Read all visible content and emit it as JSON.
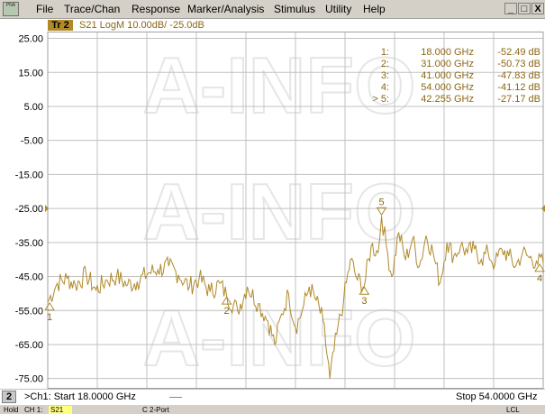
{
  "app": {
    "icon_text": "PNA"
  },
  "menu": [
    {
      "label": "File"
    },
    {
      "label": "Trace/Chan"
    },
    {
      "label": "Response"
    },
    {
      "label": "Marker/Analysis"
    },
    {
      "label": "Stimulus"
    },
    {
      "label": "Utility"
    },
    {
      "label": "Help"
    }
  ],
  "window_buttons": {
    "minimize": "_",
    "restore": "□",
    "close": "X"
  },
  "trace": {
    "badge": "Tr 2",
    "info": "S21 LogM 10.00dB/  -25.0dB"
  },
  "y_axis": {
    "labels": [
      "25.00",
      "15.00",
      "5.00",
      "-5.00",
      "-15.00",
      "-25.00",
      "-35.00",
      "-45.00",
      "-55.00",
      "-65.00",
      "-75.00"
    ]
  },
  "marker_table": [
    {
      "id": "1:",
      "freq": "18.000 GHz",
      "value": "-52.49 dB"
    },
    {
      "id": "2:",
      "freq": "31.000 GHz",
      "value": "-50.73 dB"
    },
    {
      "id": "3:",
      "freq": "41.000 GHz",
      "value": "-47.83 dB"
    },
    {
      "id": "4:",
      "freq": "54.000 GHz",
      "value": "-41.12 dB"
    },
    {
      "id": "> 5:",
      "freq": "42.255 GHz",
      "value": "-27.17 dB"
    }
  ],
  "markers_on_plot": [
    {
      "label": "1",
      "freq": 18.0,
      "db": -52.49
    },
    {
      "label": "2",
      "freq": 31.0,
      "db": -50.73
    },
    {
      "label": "3",
      "freq": 41.0,
      "db": -47.83
    },
    {
      "label": "4",
      "freq": 54.0,
      "db": -41.12
    },
    {
      "label": "5",
      "freq": 42.255,
      "db": -27.17
    }
  ],
  "watermark": {
    "text": "A-INFO"
  },
  "colors": {
    "trace": "#b08a2a",
    "marker_text": "#8b6914",
    "grid": "#c0c0c0"
  },
  "channel_bar": {
    "number": "2",
    "start": ">Ch1: Start  18.0000 GHz",
    "stop": "Stop  54.0000 GHz"
  },
  "status_bar": {
    "hold": "Hold",
    "ch": "CH 1:",
    "param": "S21",
    "port": "C  2-Port",
    "lcl": "LCL"
  },
  "chart_data": {
    "type": "line",
    "xlabel": "",
    "ylabel": "",
    "xlim": [
      18.0,
      54.0
    ],
    "ylim": [
      -78.0,
      27.0
    ],
    "reference_level": -25.0,
    "series": [
      {
        "x": [
          18.0,
          18.7,
          19.4,
          20.0,
          20.8,
          21.5,
          22.3,
          23.0,
          23.8,
          24.5,
          25.3,
          26.0,
          26.8,
          27.5,
          28.3,
          29.0,
          29.8,
          30.5,
          31.0,
          31.8,
          32.5,
          33.3,
          34.0,
          34.5,
          35.0,
          35.5,
          36.0,
          36.5,
          37.0,
          37.5,
          38.0,
          38.5,
          39.0,
          39.5,
          40.0,
          40.5,
          41.0,
          41.5,
          42.0,
          42.255,
          42.6,
          43.0,
          43.5,
          44.0,
          44.5,
          45.0,
          45.5,
          46.0,
          46.5,
          47.0,
          47.5,
          48.0,
          48.5,
          49.0,
          49.5,
          50.0,
          50.5,
          51.0,
          51.5,
          52.0,
          52.5,
          53.0,
          53.5,
          54.0
        ],
        "values": [
          -52.5,
          -47.0,
          -45.5,
          -47.5,
          -44.5,
          -49.0,
          -46.0,
          -45.0,
          -47.5,
          -46.5,
          -44.0,
          -43.0,
          -42.0,
          -44.5,
          -48.0,
          -45.5,
          -49.5,
          -47.0,
          -50.7,
          -55.0,
          -48.0,
          -53.0,
          -58.0,
          -65.0,
          -56.0,
          -50.0,
          -60.0,
          -55.0,
          -48.0,
          -52.0,
          -58.0,
          -75.0,
          -62.0,
          -52.0,
          -40.0,
          -46.0,
          -47.8,
          -36.0,
          -38.0,
          -27.2,
          -36.0,
          -45.0,
          -32.0,
          -40.0,
          -34.0,
          -42.0,
          -33.0,
          -38.0,
          -47.0,
          -35.0,
          -39.0,
          -36.0,
          -38.0,
          -37.0,
          -40.0,
          -38.0,
          -41.5,
          -37.0,
          -39.0,
          -42.0,
          -38.0,
          -39.5,
          -40.5,
          -41.1
        ]
      }
    ]
  }
}
